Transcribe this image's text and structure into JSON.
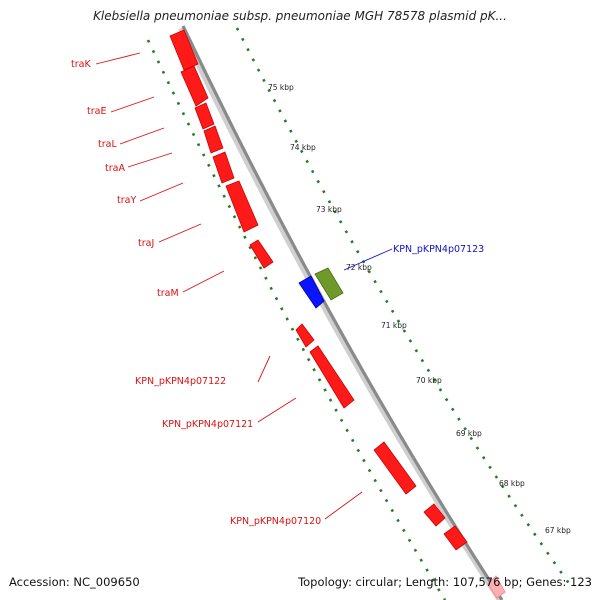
{
  "title": "Klebsiella pneumoniae subsp. pneumoniae MGH 78578 plasmid pK...",
  "footer": {
    "accession": "Accession: NC_009650",
    "summary": "Topology: circular; Length: 107,576 bp; Genes: 123"
  },
  "colors": {
    "gene_red": "#ff1a1a",
    "gene_blue": "#0a14ff",
    "gene_green": "#6f9a2a",
    "backbone": "#8a8a8a",
    "tick_green": "#208020",
    "label_red": "#dd1111",
    "label_blue": "#1111cc"
  },
  "scale_labels": [
    "75 kbp",
    "74 kbp",
    "73 kbp",
    "72 kbp",
    "71 kbp",
    "70 kbp",
    "69 kbp",
    "68 kbp",
    "67 kbp"
  ],
  "gene_labels": [
    {
      "text": "traK",
      "color": "red"
    },
    {
      "text": "traE",
      "color": "red"
    },
    {
      "text": "traL",
      "color": "red"
    },
    {
      "text": "traA",
      "color": "red"
    },
    {
      "text": "traY",
      "color": "red"
    },
    {
      "text": "traJ",
      "color": "red"
    },
    {
      "text": "traM",
      "color": "red"
    },
    {
      "text": "KPN_pKPN4p07122",
      "color": "red"
    },
    {
      "text": "KPN_pKPN4p07121",
      "color": "red"
    },
    {
      "text": "KPN_pKPN4p07120",
      "color": "red"
    },
    {
      "text": "KPN_pKPN4p07123",
      "color": "blue"
    }
  ]
}
